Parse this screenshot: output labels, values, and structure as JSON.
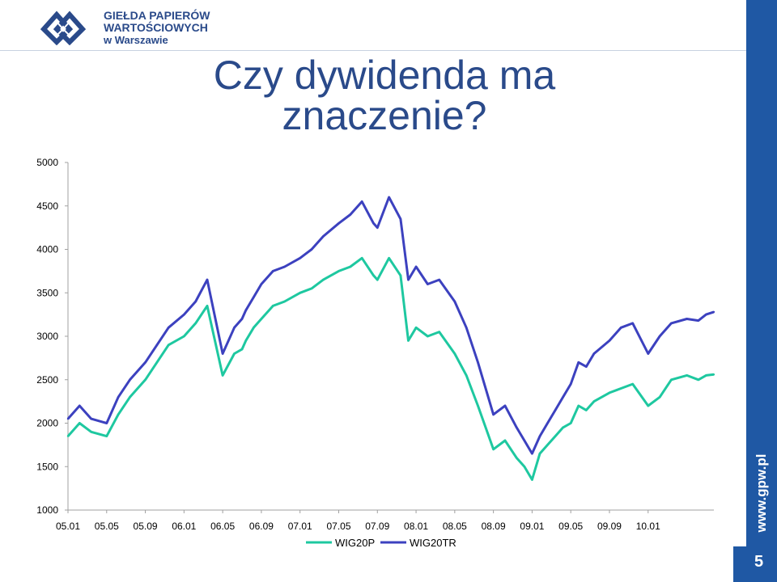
{
  "header": {
    "logo_line1": "GIEŁDA PAPIERÓW",
    "logo_line2": "WARTOŚCIOWYCH",
    "logo_line3": "w Warszawie"
  },
  "slide": {
    "title_line1": "Czy dywidenda ma",
    "title_line2": "znaczenie?",
    "url": "www.gpw.pl",
    "page_number": "5"
  },
  "colors": {
    "brand_blue": "#1f58a4",
    "wig20p": "#1ec8a0",
    "wig20tr": "#3c41bf"
  },
  "chart_data": {
    "type": "line",
    "title": "",
    "xlabel": "",
    "ylabel": "",
    "ylim": [
      1000,
      5000
    ],
    "yticks": [
      1000,
      1500,
      2000,
      2500,
      3000,
      3500,
      4000,
      4500,
      5000
    ],
    "xticks": [
      "05.01",
      "05.05",
      "05.09",
      "06.01",
      "06.05",
      "06.09",
      "07.01",
      "07.05",
      "07.09",
      "08.01",
      "08.05",
      "08.09",
      "09.01",
      "09.05",
      "09.09",
      "10.01"
    ],
    "x_index_range": [
      0,
      16.7
    ],
    "grid": false,
    "legend": "bottom",
    "series": [
      {
        "name": "WIG20P",
        "x": [
          0,
          0.3,
          0.6,
          1.0,
          1.3,
          1.6,
          2.0,
          2.3,
          2.6,
          3.0,
          3.3,
          3.6,
          4.0,
          4.3,
          4.5,
          4.6,
          4.8,
          5.0,
          5.3,
          5.6,
          6.0,
          6.3,
          6.6,
          7.0,
          7.3,
          7.6,
          7.9,
          8.0,
          8.3,
          8.6,
          8.8,
          9.0,
          9.3,
          9.6,
          10.0,
          10.3,
          10.6,
          11.0,
          11.3,
          11.6,
          11.8,
          12.0,
          12.2,
          12.4,
          12.6,
          12.8,
          13.0,
          13.2,
          13.4,
          13.6,
          14.0,
          14.3,
          14.6,
          15.0,
          15.3,
          15.6,
          16.0,
          16.3,
          16.5,
          16.7
        ],
        "values": [
          1850,
          2000,
          1900,
          1850,
          2100,
          2300,
          2500,
          2700,
          2900,
          3000,
          3150,
          3350,
          2550,
          2800,
          2850,
          2950,
          3100,
          3200,
          3350,
          3400,
          3500,
          3550,
          3650,
          3750,
          3800,
          3900,
          3700,
          3650,
          3900,
          3700,
          2950,
          3100,
          3000,
          3050,
          2800,
          2550,
          2200,
          1700,
          1800,
          1600,
          1500,
          1350,
          1650,
          1750,
          1850,
          1950,
          2000,
          2200,
          2150,
          2250,
          2350,
          2400,
          2450,
          2200,
          2300,
          2500,
          2550,
          2500,
          2550,
          2560
        ]
      },
      {
        "name": "WIG20TR",
        "x": [
          0,
          0.3,
          0.6,
          1.0,
          1.3,
          1.6,
          2.0,
          2.3,
          2.6,
          3.0,
          3.3,
          3.6,
          4.0,
          4.3,
          4.5,
          4.6,
          4.8,
          5.0,
          5.3,
          5.6,
          6.0,
          6.3,
          6.6,
          7.0,
          7.3,
          7.6,
          7.9,
          8.0,
          8.3,
          8.6,
          8.8,
          9.0,
          9.3,
          9.6,
          10.0,
          10.3,
          10.6,
          11.0,
          11.3,
          11.6,
          11.8,
          12.0,
          12.2,
          12.4,
          12.6,
          12.8,
          13.0,
          13.2,
          13.4,
          13.6,
          14.0,
          14.3,
          14.6,
          15.0,
          15.3,
          15.6,
          16.0,
          16.3,
          16.5,
          16.7
        ],
        "values": [
          2050,
          2200,
          2050,
          2000,
          2300,
          2500,
          2700,
          2900,
          3100,
          3250,
          3400,
          3650,
          2800,
          3100,
          3200,
          3300,
          3450,
          3600,
          3750,
          3800,
          3900,
          4000,
          4150,
          4300,
          4400,
          4550,
          4300,
          4250,
          4600,
          4350,
          3650,
          3800,
          3600,
          3650,
          3400,
          3100,
          2700,
          2100,
          2200,
          1950,
          1800,
          1650,
          1850,
          2000,
          2150,
          2300,
          2450,
          2700,
          2650,
          2800,
          2950,
          3100,
          3150,
          2800,
          3000,
          3150,
          3200,
          3180,
          3250,
          3280
        ]
      }
    ]
  }
}
